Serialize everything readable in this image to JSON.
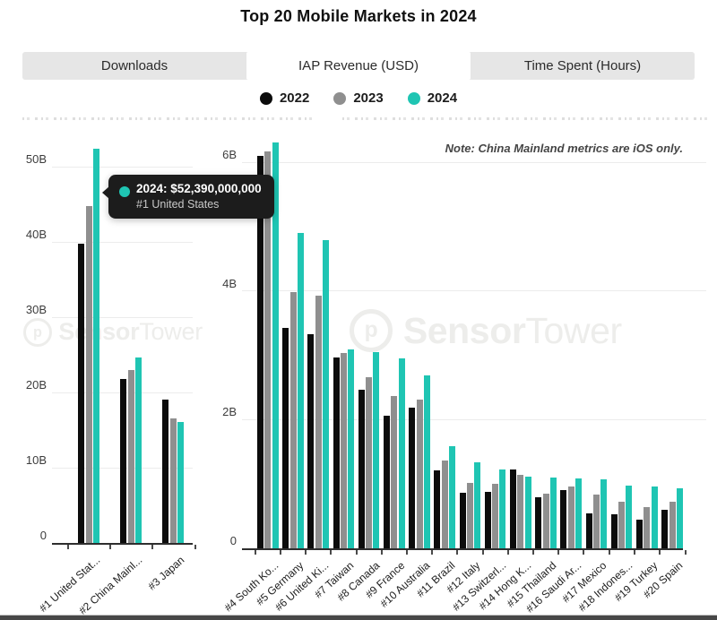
{
  "title": "Top 20 Mobile Markets in 2024",
  "tabs": [
    {
      "label": "Downloads",
      "active": false
    },
    {
      "label": "IAP Revenue (USD)",
      "active": true
    },
    {
      "label": "Time Spent (Hours)",
      "active": false
    }
  ],
  "legend": [
    {
      "label": "2022",
      "color": "#0c0c0c"
    },
    {
      "label": "2023",
      "color": "#8f8f8f"
    },
    {
      "label": "2024",
      "color": "#1fc5b3"
    }
  ],
  "note": "Note: China Mainland metrics are iOS only.",
  "tooltip": {
    "line1": "2024: $52,390,000,000",
    "line2": "#1 United States"
  },
  "watermark": {
    "bold": "Sensor",
    "light": "Tower"
  },
  "colors": {
    "accent_teal": "#1fc5b3",
    "bar_2022": "#0c0c0c",
    "bar_2023": "#8f8f8f",
    "tooltip_bg": "#1c1c1c",
    "gridline": "#ececec",
    "axis": "#2e2e2e"
  },
  "chart_data": [
    {
      "type": "bar",
      "title": "Top 1-3 markets, IAP Revenue (USD)",
      "categories": [
        "#1 United Stat...",
        "#2 China Mainl...",
        "#3 Japan"
      ],
      "categories_full": [
        "United States",
        "China Mainland",
        "Japan"
      ],
      "unit": "billions USD",
      "ylim": [
        0,
        55
      ],
      "yticks": [
        0,
        10,
        20,
        30,
        40,
        50
      ],
      "ytick_labels": [
        "0",
        "10B",
        "20B",
        "30B",
        "40B",
        "50B"
      ],
      "grid": true,
      "series": [
        {
          "name": "2022",
          "color": "#0c0c0c",
          "values": [
            39.8,
            21.8,
            19.0
          ]
        },
        {
          "name": "2023",
          "color": "#8f8f8f",
          "values": [
            44.8,
            23.0,
            16.6
          ]
        },
        {
          "name": "2024",
          "color": "#1fc5b3",
          "values": [
            52.39,
            24.6,
            16.1
          ]
        }
      ],
      "highlight": {
        "series": "2024",
        "category": "#1 United States",
        "value_label": "$52,390,000,000"
      }
    },
    {
      "type": "bar",
      "title": "Top 4-20 markets, IAP Revenue (USD)",
      "categories": [
        "#4 South Ko...",
        "#5 Germany",
        "#6 United Ki...",
        "#7 Taiwan",
        "#8 Canada",
        "#9 France",
        "#10 Australia",
        "#11 Brazil",
        "#12 Italy",
        "#13 Switzerl...",
        "#14 Hong K...",
        "#15 Thailand",
        "#16 Saudi Ar...",
        "#17 Mexico",
        "#18 Indones...",
        "#19 Turkey",
        "#20 Spain"
      ],
      "categories_full": [
        "South Korea",
        "Germany",
        "United Kingdom",
        "Taiwan",
        "Canada",
        "France",
        "Australia",
        "Brazil",
        "Italy",
        "Switzerland",
        "Hong Kong",
        "Thailand",
        "Saudi Arabia",
        "Mexico",
        "Indonesia",
        "Turkey",
        "Spain"
      ],
      "unit": "billions USD",
      "ylim": [
        0,
        6.6
      ],
      "yticks": [
        0,
        2,
        4,
        6
      ],
      "ytick_labels": [
        "0",
        "2B",
        "4B",
        "6B"
      ],
      "grid": true,
      "series": [
        {
          "name": "2022",
          "color": "#0c0c0c",
          "values": [
            6.1,
            3.42,
            3.33,
            2.97,
            2.47,
            2.06,
            2.19,
            1.21,
            0.87,
            0.88,
            1.23,
            0.8,
            0.9,
            0.55,
            0.53,
            0.45,
            0.6
          ]
        },
        {
          "name": "2023",
          "color": "#8f8f8f",
          "values": [
            6.17,
            3.98,
            3.93,
            3.04,
            2.66,
            2.37,
            2.31,
            1.37,
            1.02,
            1.0,
            1.14,
            0.85,
            0.96,
            0.83,
            0.73,
            0.64,
            0.72
          ]
        },
        {
          "name": "2024",
          "color": "#1fc5b3",
          "values": [
            6.31,
            4.9,
            4.79,
            3.09,
            3.05,
            2.95,
            2.69,
            1.59,
            1.34,
            1.22,
            1.11,
            1.1,
            1.08,
            1.07,
            0.97,
            0.96,
            0.94
          ]
        }
      ]
    }
  ]
}
